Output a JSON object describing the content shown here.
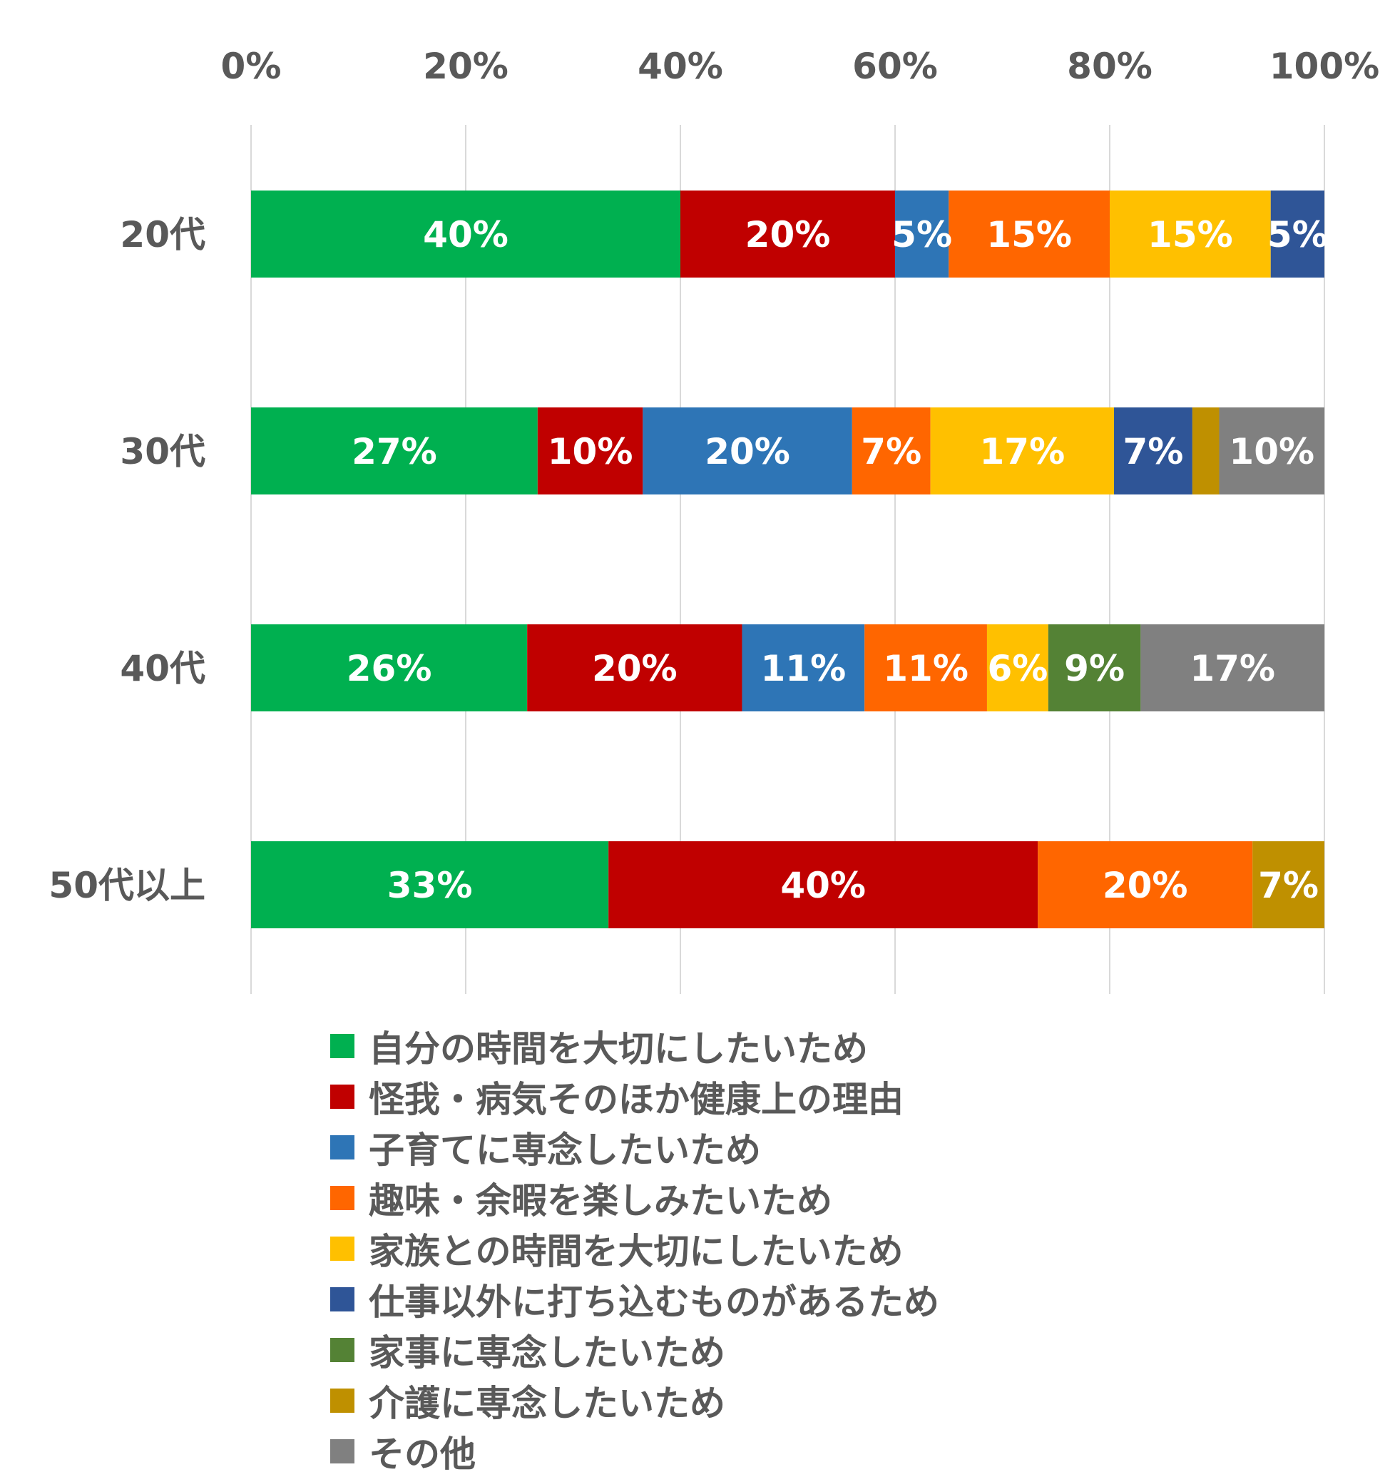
{
  "chart_data": {
    "type": "bar",
    "orientation": "horizontal",
    "stacked": "percent",
    "categories": [
      "20代",
      "30代",
      "40代",
      "50代以上"
    ],
    "xlim": [
      0,
      100
    ],
    "x_ticks": [
      "0%",
      "20%",
      "40%",
      "60%",
      "80%",
      "100%"
    ],
    "grid": true,
    "legend_position": "bottom",
    "series": [
      {
        "name": "自分の時間を大切にしたいため",
        "color": "#00b050",
        "values": [
          40,
          26.7,
          25.7,
          33.3
        ],
        "labels": [
          "40%",
          "27%",
          "26%",
          "33%"
        ]
      },
      {
        "name": "怪我・病気そのほか健康上の理由",
        "color": "#c00000",
        "values": [
          20,
          9.8,
          20,
          40
        ],
        "labels": [
          "20%",
          "10%",
          "20%",
          "40%"
        ]
      },
      {
        "name": "子育てに専念したいため",
        "color": "#2e75b6",
        "values": [
          5,
          19.5,
          11.4,
          0
        ],
        "labels": [
          "5%",
          "20%",
          "11%",
          ""
        ]
      },
      {
        "name": "趣味・余暇を楽しみたいため",
        "color": "#ff6600",
        "values": [
          15,
          7.3,
          11.4,
          20
        ],
        "labels": [
          "15%",
          "7%",
          "11%",
          "20%"
        ]
      },
      {
        "name": "家族との時間を大切にしたいため",
        "color": "#ffc000",
        "values": [
          15,
          17.1,
          5.7,
          0
        ],
        "labels": [
          "15%",
          "17%",
          "6%",
          ""
        ]
      },
      {
        "name": "仕事以外に打ち込むものがあるため",
        "color": "#2f5597",
        "values": [
          5,
          7.3,
          0,
          0
        ],
        "labels": [
          "5%",
          "7%",
          "",
          ""
        ]
      },
      {
        "name": "家事に専念したいため",
        "color": "#548235",
        "values": [
          0,
          0,
          8.6,
          0
        ],
        "labels": [
          "",
          "",
          "9%",
          ""
        ]
      },
      {
        "name": "介護に専念したいため",
        "color": "#bf9000",
        "values": [
          0,
          2.5,
          0,
          6.7
        ],
        "labels": [
          "",
          "",
          "",
          "7%"
        ]
      },
      {
        "name": "その他",
        "color": "#808080",
        "values": [
          0,
          9.8,
          17.1,
          0
        ],
        "labels": [
          "",
          "10%",
          "17%",
          ""
        ]
      }
    ]
  }
}
